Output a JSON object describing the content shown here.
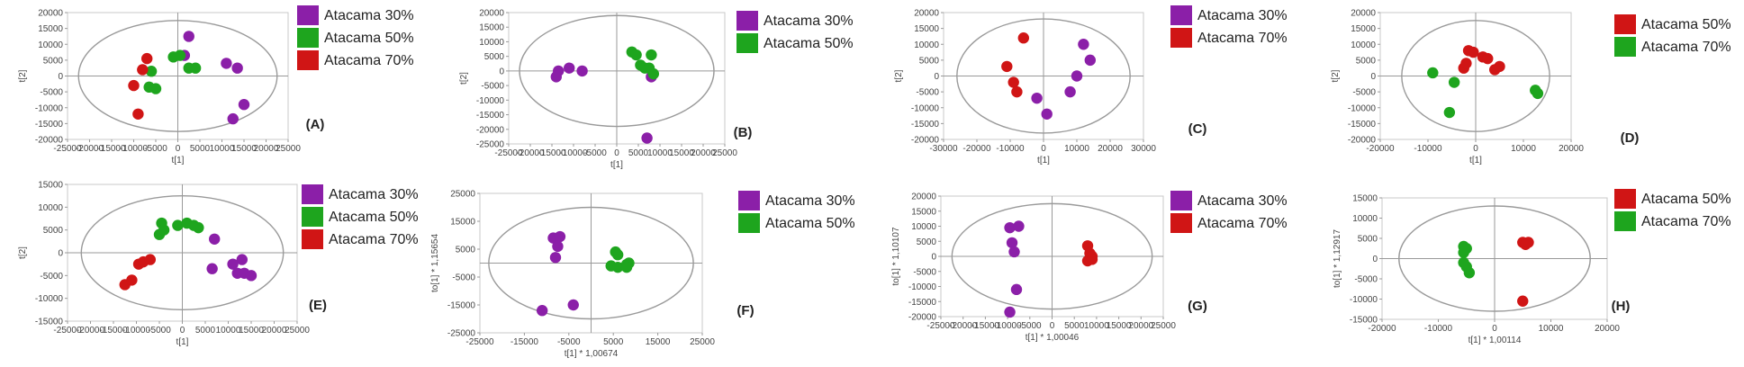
{
  "colors": {
    "atacama_30": "#8b1fa8",
    "atacama_50": "#1ea51e",
    "atacama_70": "#d01515",
    "axis": "#999999",
    "ellipse": "#9a9a9a",
    "text": "#444444"
  },
  "chart_data": [
    {
      "type": "scatter",
      "label": "(A)",
      "xlabel": "t[1]",
      "ylabel": "t[2]",
      "xlim": [
        -25000,
        25000
      ],
      "ylim": [
        -20000,
        20000
      ],
      "xticks": [
        -25000,
        -20000,
        -15000,
        -10000,
        -5000,
        0,
        5000,
        10000,
        15000,
        20000,
        25000
      ],
      "yticks": [
        -20000,
        -15000,
        -10000,
        -5000,
        0,
        5000,
        10000,
        15000,
        20000
      ],
      "ellipse": {
        "rx": 22500,
        "ry": 17500
      },
      "legend": [
        {
          "name": "Atacama 30%",
          "color_key": "atacama_30"
        },
        {
          "name": "Atacama 50%",
          "color_key": "atacama_50"
        },
        {
          "name": "Atacama 70%",
          "color_key": "atacama_70"
        }
      ],
      "series": [
        {
          "name": "Atacama 30%",
          "color_key": "atacama_30",
          "points": [
            [
              2500,
              12500
            ],
            [
              1500,
              6500
            ],
            [
              11000,
              4000
            ],
            [
              13500,
              2500
            ],
            [
              15000,
              -9000
            ],
            [
              12500,
              -13500
            ]
          ]
        },
        {
          "name": "Atacama 50%",
          "color_key": "atacama_50",
          "points": [
            [
              -1000,
              6000
            ],
            [
              500,
              6500
            ],
            [
              2500,
              2500
            ],
            [
              4000,
              2500
            ],
            [
              -6000,
              1500
            ],
            [
              -6500,
              -3500
            ],
            [
              -5000,
              -4000
            ]
          ]
        },
        {
          "name": "Atacama 70%",
          "color_key": "atacama_70",
          "points": [
            [
              -10000,
              -3000
            ],
            [
              -8000,
              2000
            ],
            [
              -7000,
              5500
            ],
            [
              -9000,
              -12000
            ]
          ]
        }
      ]
    },
    {
      "type": "scatter",
      "label": "(B)",
      "xlabel": "t[1]",
      "ylabel": "t[2]",
      "xlim": [
        -25000,
        25000
      ],
      "ylim": [
        -25000,
        20000
      ],
      "xticks": [
        -25000,
        -20000,
        -15000,
        -10000,
        -5000,
        0,
        5000,
        10000,
        15000,
        20000,
        25000
      ],
      "yticks": [
        -25000,
        -20000,
        -15000,
        -10000,
        -5000,
        0,
        5000,
        10000,
        15000,
        20000
      ],
      "ellipse": {
        "rx": 22500,
        "ry": 19000
      },
      "legend": [
        {
          "name": "Atacama 30%",
          "color_key": "atacama_30"
        },
        {
          "name": "Atacama 50%",
          "color_key": "atacama_50"
        }
      ],
      "series": [
        {
          "name": "Atacama 30%",
          "color_key": "atacama_30",
          "points": [
            [
              -14000,
              -2000
            ],
            [
              -13500,
              0
            ],
            [
              -11000,
              1000
            ],
            [
              -8000,
              0
            ],
            [
              7000,
              -23000
            ],
            [
              8000,
              -2000
            ]
          ]
        },
        {
          "name": "Atacama 50%",
          "color_key": "atacama_50",
          "points": [
            [
              3500,
              6500
            ],
            [
              4500,
              5500
            ],
            [
              5500,
              2000
            ],
            [
              6500,
              1000
            ],
            [
              8000,
              5500
            ],
            [
              8500,
              -1000
            ],
            [
              7500,
              1000
            ]
          ]
        }
      ]
    },
    {
      "type": "scatter",
      "label": "(C)",
      "xlabel": "t[1]",
      "ylabel": "t[2]",
      "xlim": [
        -30000,
        30000
      ],
      "ylim": [
        -20000,
        20000
      ],
      "xticks": [
        -30000,
        -20000,
        -10000,
        0,
        10000,
        20000,
        30000
      ],
      "yticks": [
        -20000,
        -15000,
        -10000,
        -5000,
        0,
        5000,
        10000,
        15000,
        20000
      ],
      "ellipse": {
        "rx": 26000,
        "ry": 18000
      },
      "legend": [
        {
          "name": "Atacama 30%",
          "color_key": "atacama_30"
        },
        {
          "name": "Atacama 70%",
          "color_key": "atacama_70"
        }
      ],
      "series": [
        {
          "name": "Atacama 30%",
          "color_key": "atacama_30",
          "points": [
            [
              12000,
              10000
            ],
            [
              14000,
              5000
            ],
            [
              10000,
              0
            ],
            [
              8000,
              -5000
            ],
            [
              -2000,
              -7000
            ],
            [
              1000,
              -12000
            ]
          ]
        },
        {
          "name": "Atacama 70%",
          "color_key": "atacama_70",
          "points": [
            [
              -6000,
              12000
            ],
            [
              -11000,
              3000
            ],
            [
              -9000,
              -2000
            ],
            [
              -8000,
              -5000
            ]
          ]
        }
      ]
    },
    {
      "type": "scatter",
      "label": "(D)",
      "xlabel": "t[1]",
      "ylabel": "t[2]",
      "xlim": [
        -20000,
        20000
      ],
      "ylim": [
        -20000,
        20000
      ],
      "xticks": [
        -20000,
        -10000,
        0,
        10000,
        20000
      ],
      "yticks": [
        -20000,
        -15000,
        -10000,
        -5000,
        0,
        5000,
        10000,
        15000,
        20000
      ],
      "ellipse": {
        "rx": 15500,
        "ry": 17500
      },
      "legend": [
        {
          "name": "Atacama 50%",
          "color_key": "atacama_70"
        },
        {
          "name": "Atacama 70%",
          "color_key": "atacama_50"
        }
      ],
      "series": [
        {
          "name": "Atacama 50%",
          "color_key": "atacama_70",
          "points": [
            [
              -1500,
              8000
            ],
            [
              -500,
              7500
            ],
            [
              1500,
              6000
            ],
            [
              2500,
              5500
            ],
            [
              4000,
              2000
            ],
            [
              5000,
              3000
            ],
            [
              -2500,
              2500
            ],
            [
              -2000,
              4000
            ]
          ]
        },
        {
          "name": "Atacama 70%",
          "color_key": "atacama_50",
          "points": [
            [
              -9000,
              1000
            ],
            [
              -4500,
              -2000
            ],
            [
              -5500,
              -11500
            ],
            [
              12500,
              -4500
            ],
            [
              13000,
              -5500
            ]
          ]
        }
      ]
    },
    {
      "type": "scatter",
      "label": "(E)",
      "xlabel": "t[1]",
      "ylabel": "t[2]",
      "xlim": [
        -25000,
        25000
      ],
      "ylim": [
        -15000,
        15000
      ],
      "xticks": [
        -25000,
        -20000,
        -15000,
        -10000,
        -5000,
        0,
        5000,
        10000,
        15000,
        20000,
        25000
      ],
      "yticks": [
        -15000,
        -10000,
        -5000,
        0,
        5000,
        10000,
        15000
      ],
      "ellipse": {
        "rx": 22000,
        "ry": 12500
      },
      "legend": [
        {
          "name": "Atacama 30%",
          "color_key": "atacama_30"
        },
        {
          "name": "Atacama 50%",
          "color_key": "atacama_50"
        },
        {
          "name": "Atacama 70%",
          "color_key": "atacama_70"
        }
      ],
      "series": [
        {
          "name": "Atacama 30%",
          "color_key": "atacama_30",
          "points": [
            [
              7000,
              3000
            ],
            [
              6500,
              -3500
            ],
            [
              11000,
              -2500
            ],
            [
              12000,
              -4500
            ],
            [
              13500,
              -4500
            ],
            [
              15000,
              -5000
            ],
            [
              13000,
              -1500
            ]
          ]
        },
        {
          "name": "Atacama 50%",
          "color_key": "atacama_50",
          "points": [
            [
              -5000,
              4000
            ],
            [
              -4500,
              6500
            ],
            [
              -4000,
              5000
            ],
            [
              -1000,
              6000
            ],
            [
              1000,
              6500
            ],
            [
              2500,
              6000
            ],
            [
              3500,
              5500
            ]
          ]
        },
        {
          "name": "Atacama 70%",
          "color_key": "atacama_70",
          "points": [
            [
              -9500,
              -2500
            ],
            [
              -8500,
              -2000
            ],
            [
              -7000,
              -1500
            ],
            [
              -12500,
              -7000
            ],
            [
              -11000,
              -6000
            ]
          ]
        }
      ]
    },
    {
      "type": "scatter",
      "label": "(F)",
      "xlabel": "t[1] * 1,00674",
      "ylabel": "to[1] * 1,15654",
      "xlim": [
        -25000,
        25000
      ],
      "ylim": [
        -25000,
        25000
      ],
      "xticks": [
        -25000,
        -15000,
        -5000,
        5000,
        15000,
        25000
      ],
      "yticks": [
        -25000,
        -15000,
        -5000,
        5000,
        15000,
        25000
      ],
      "ellipse": {
        "rx": 23000,
        "ry": 20000
      },
      "legend": [
        {
          "name": "Atacama 30%",
          "color_key": "atacama_30"
        },
        {
          "name": "Atacama 50%",
          "color_key": "atacama_50"
        }
      ],
      "series": [
        {
          "name": "Atacama 30%",
          "color_key": "atacama_30",
          "points": [
            [
              -8500,
              9000
            ],
            [
              -7000,
              9500
            ],
            [
              -7500,
              6000
            ],
            [
              -8000,
              2000
            ],
            [
              -11000,
              -17000
            ],
            [
              -4000,
              -15000
            ]
          ]
        },
        {
          "name": "Atacama 50%",
          "color_key": "atacama_50",
          "points": [
            [
              5500,
              4000
            ],
            [
              6000,
              3000
            ],
            [
              4500,
              -1000
            ],
            [
              6000,
              -1500
            ],
            [
              8000,
              -500
            ],
            [
              8500,
              0
            ],
            [
              8000,
              -1500
            ]
          ]
        }
      ]
    },
    {
      "type": "scatter",
      "label": "(G)",
      "xlabel": "t[1] * 1,00046",
      "ylabel": "to[1] * 1,10107",
      "xlim": [
        -25000,
        25000
      ],
      "ylim": [
        -20000,
        20000
      ],
      "xticks": [
        -25000,
        -20000,
        -15000,
        -10000,
        -5000,
        0,
        5000,
        10000,
        15000,
        20000,
        25000
      ],
      "yticks": [
        -20000,
        -15000,
        -10000,
        -5000,
        0,
        5000,
        10000,
        15000,
        20000
      ],
      "ellipse": {
        "rx": 22500,
        "ry": 17500
      },
      "legend": [
        {
          "name": "Atacama 30%",
          "color_key": "atacama_30"
        },
        {
          "name": "Atacama 70%",
          "color_key": "atacama_70"
        }
      ],
      "series": [
        {
          "name": "Atacama 30%",
          "color_key": "atacama_30",
          "points": [
            [
              -9500,
              9500
            ],
            [
              -7500,
              10000
            ],
            [
              -9000,
              4500
            ],
            [
              -8500,
              1500
            ],
            [
              -8000,
              -11000
            ],
            [
              -9500,
              -18500
            ]
          ]
        },
        {
          "name": "Atacama 70%",
          "color_key": "atacama_70",
          "points": [
            [
              8000,
              3500
            ],
            [
              8500,
              1000
            ],
            [
              9000,
              0
            ],
            [
              8000,
              -1500
            ],
            [
              9000,
              -1000
            ]
          ]
        }
      ]
    },
    {
      "type": "scatter",
      "label": "(H)",
      "xlabel": "t[1] * 1,00114",
      "ylabel": "to[1] * 1,12917",
      "xlim": [
        -20000,
        20000
      ],
      "ylim": [
        -15000,
        15000
      ],
      "xticks": [
        -20000,
        -10000,
        0,
        10000,
        20000
      ],
      "yticks": [
        -15000,
        -10000,
        -5000,
        0,
        5000,
        10000,
        15000
      ],
      "ellipse": {
        "rx": 17000,
        "ry": 13000
      },
      "legend": [
        {
          "name": "Atacama 50%",
          "color_key": "atacama_70"
        },
        {
          "name": "Atacama 70%",
          "color_key": "atacama_50"
        }
      ],
      "series": [
        {
          "name": "Atacama 50%",
          "color_key": "atacama_70",
          "points": [
            [
              5000,
              4000
            ],
            [
              5500,
              3500
            ],
            [
              6000,
              4000
            ],
            [
              5000,
              -10500
            ]
          ]
        },
        {
          "name": "Atacama 70%",
          "color_key": "atacama_50",
          "points": [
            [
              -5500,
              3000
            ],
            [
              -5000,
              2500
            ],
            [
              -5500,
              1500
            ],
            [
              -5500,
              -1000
            ],
            [
              -5000,
              -2000
            ],
            [
              -4500,
              -3500
            ]
          ]
        }
      ]
    }
  ]
}
